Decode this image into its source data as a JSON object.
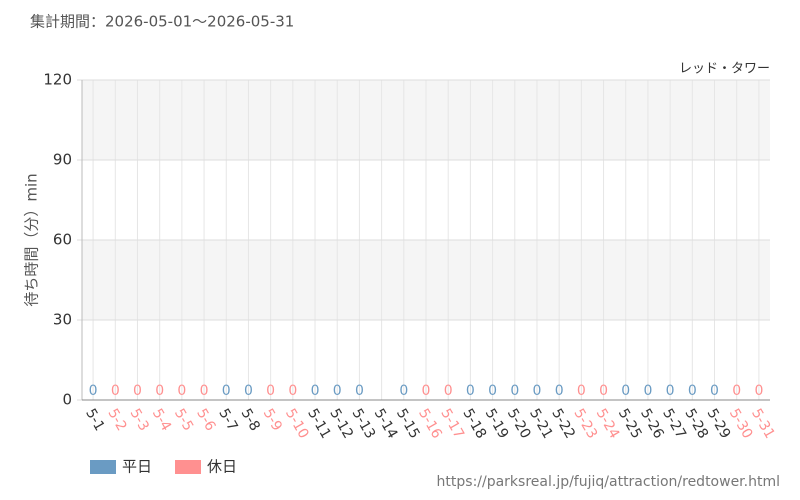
{
  "chart_data": {
    "type": "bar",
    "title": "集計期間：2026-05-01～2026-05-31",
    "annotation": "レッド・タワー",
    "y_label": "待ち時間（分）min",
    "source": "https://parksreal.jp/fujiq/attraction/redtower.html",
    "categories": [
      "5-1",
      "5-2",
      "5-3",
      "5-4",
      "5-5",
      "5-6",
      "5-7",
      "5-8",
      "5-9",
      "5-10",
      "5-11",
      "5-12",
      "5-13",
      "5-14",
      "5-15",
      "5-16",
      "5-17",
      "5-18",
      "5-19",
      "5-20",
      "5-21",
      "5-22",
      "5-23",
      "5-24",
      "5-25",
      "5-26",
      "5-27",
      "5-28",
      "5-29",
      "5-30",
      "5-31"
    ],
    "series": [
      {
        "name": "平日",
        "color": "#6a9bc3",
        "values": [
          0,
          null,
          null,
          null,
          null,
          null,
          0,
          0,
          null,
          null,
          0,
          0,
          0,
          null,
          0,
          null,
          null,
          0,
          0,
          0,
          0,
          0,
          null,
          null,
          0,
          0,
          0,
          0,
          0,
          null,
          null
        ]
      },
      {
        "name": "休日",
        "color": "#ff9090",
        "values": [
          null,
          0,
          0,
          0,
          0,
          0,
          null,
          null,
          0,
          0,
          null,
          null,
          null,
          null,
          null,
          0,
          0,
          null,
          null,
          null,
          null,
          null,
          0,
          0,
          null,
          null,
          null,
          null,
          null,
          0,
          0
        ]
      }
    ],
    "ylim": [
      0,
      120
    ],
    "yticks": [
      0,
      30,
      60,
      90,
      120
    ],
    "grid": true
  }
}
